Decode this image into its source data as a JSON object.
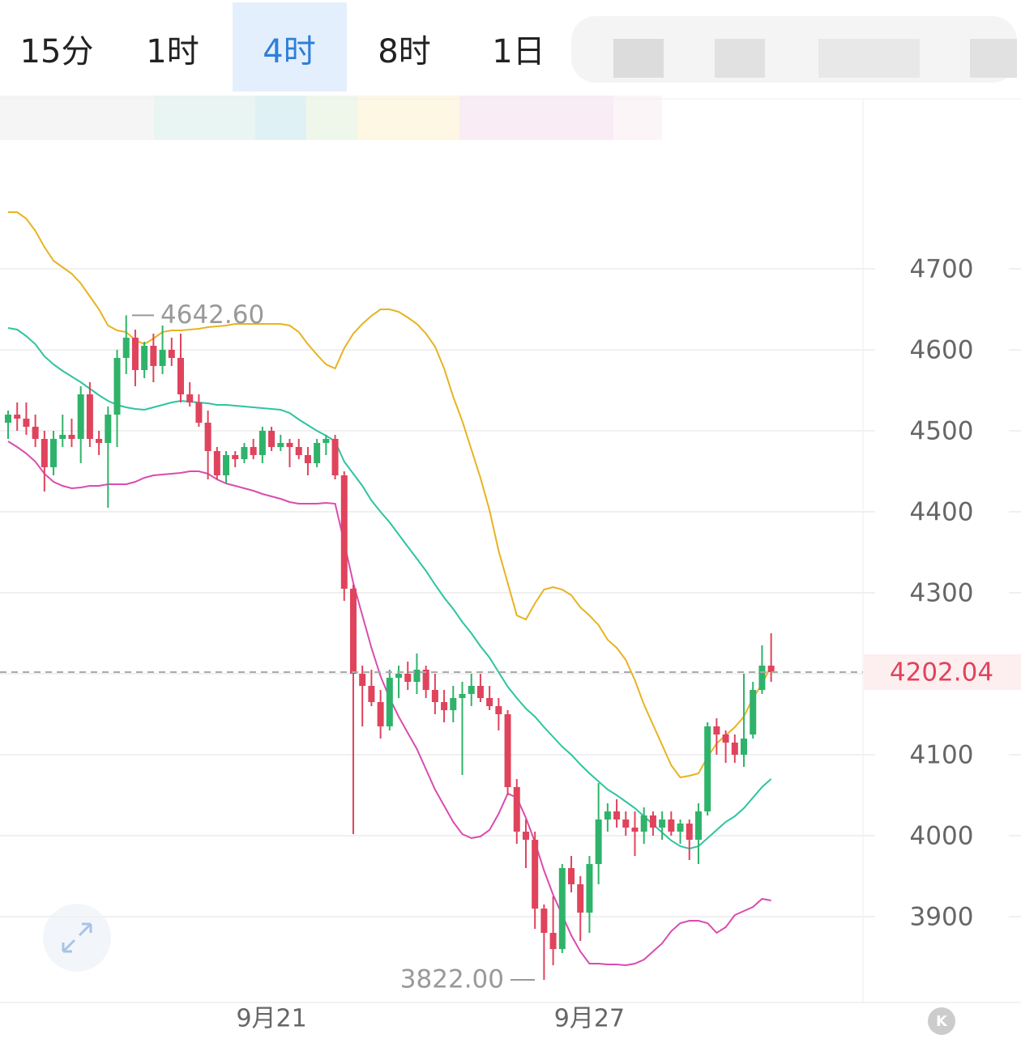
{
  "tabs": [
    "15分",
    "1时",
    "4时",
    "8时",
    "1日"
  ],
  "selected_tab": 2,
  "logo": "K",
  "chart_data": {
    "type": "candlestick",
    "ylim": [
      3794,
      4857
    ],
    "yticks": [
      3900,
      4000,
      4100,
      4200,
      4300,
      4400,
      4500,
      4600,
      4700
    ],
    "grid": true,
    "up_color": "#2fb36a",
    "down_color": "#e0435c",
    "categories": [
      null,
      null,
      null,
      null,
      null,
      null,
      null,
      null,
      null,
      null,
      null,
      null,
      null,
      null,
      null,
      null,
      null,
      null,
      null,
      null,
      null,
      null,
      null,
      null,
      null,
      null,
      null,
      null,
      null,
      "9月21",
      null,
      null,
      null,
      null,
      null,
      null,
      null,
      null,
      null,
      null,
      null,
      null,
      null,
      null,
      null,
      null,
      null,
      null,
      null,
      null,
      null,
      null,
      null,
      null,
      null,
      null,
      null,
      null,
      null,
      null,
      null,
      null,
      null,
      null,
      "9月27",
      null,
      null,
      null,
      null,
      null,
      null,
      null,
      null,
      null,
      null,
      null,
      null,
      null,
      null,
      null,
      null,
      null,
      null,
      null,
      null
    ],
    "ohlc": [
      [
        4510,
        4525,
        4490,
        4520
      ],
      [
        4520,
        4535,
        4500,
        4515
      ],
      [
        4515,
        4535,
        4495,
        4505
      ],
      [
        4505,
        4520,
        4480,
        4490
      ],
      [
        4490,
        4500,
        4425,
        4455
      ],
      [
        4455,
        4500,
        4445,
        4490
      ],
      [
        4490,
        4520,
        4480,
        4495
      ],
      [
        4495,
        4515,
        4480,
        4490
      ],
      [
        4490,
        4555,
        4460,
        4545
      ],
      [
        4545,
        4560,
        4480,
        4490
      ],
      [
        4490,
        4500,
        4470,
        4485
      ],
      [
        4485,
        4530,
        4405,
        4520
      ],
      [
        4520,
        4600,
        4480,
        4590
      ],
      [
        4590,
        4642.6,
        4570,
        4615
      ],
      [
        4615,
        4625,
        4555,
        4575
      ],
      [
        4575,
        4610,
        4565,
        4605
      ],
      [
        4605,
        4620,
        4560,
        4580
      ],
      [
        4580,
        4630,
        4570,
        4600
      ],
      [
        4600,
        4615,
        4580,
        4590
      ],
      [
        4590,
        4620,
        4535,
        4545
      ],
      [
        4545,
        4560,
        4530,
        4535
      ],
      [
        4535,
        4545,
        4505,
        4510
      ],
      [
        4510,
        4525,
        4440,
        4475
      ],
      [
        4475,
        4480,
        4440,
        4445
      ],
      [
        4445,
        4475,
        4435,
        4470
      ],
      [
        4470,
        4475,
        4455,
        4465
      ],
      [
        4465,
        4485,
        4460,
        4480
      ],
      [
        4480,
        4490,
        4465,
        4470
      ],
      [
        4470,
        4505,
        4460,
        4500
      ],
      [
        4500,
        4505,
        4475,
        4480
      ],
      [
        4480,
        4495,
        4475,
        4485
      ],
      [
        4485,
        4490,
        4455,
        4480
      ],
      [
        4480,
        4490,
        4465,
        4470
      ],
      [
        4470,
        4480,
        4445,
        4460
      ],
      [
        4460,
        4490,
        4455,
        4485
      ],
      [
        4485,
        4495,
        4470,
        4490
      ],
      [
        4490,
        4495,
        4440,
        4445
      ],
      [
        4445,
        4450,
        4290,
        4305
      ],
      [
        4305,
        4310,
        4002,
        4200
      ],
      [
        4200,
        4210,
        4135,
        4185
      ],
      [
        4185,
        4205,
        4160,
        4165
      ],
      [
        4165,
        4180,
        4120,
        4135
      ],
      [
        4135,
        4205,
        4130,
        4195
      ],
      [
        4195,
        4210,
        4170,
        4200
      ],
      [
        4200,
        4215,
        4180,
        4190
      ],
      [
        4190,
        4225,
        4175,
        4205
      ],
      [
        4205,
        4210,
        4170,
        4180
      ],
      [
        4180,
        4200,
        4150,
        4165
      ],
      [
        4165,
        4180,
        4140,
        4155
      ],
      [
        4155,
        4185,
        4140,
        4170
      ],
      [
        4170,
        4190,
        4075,
        4175
      ],
      [
        4175,
        4200,
        4160,
        4185
      ],
      [
        4185,
        4200,
        4165,
        4170
      ],
      [
        4170,
        4185,
        4155,
        4160
      ],
      [
        4160,
        4170,
        4130,
        4150
      ],
      [
        4150,
        4155,
        4050,
        4060
      ],
      [
        4060,
        4070,
        3990,
        4005
      ],
      [
        4005,
        4020,
        3960,
        3995
      ],
      [
        3995,
        4005,
        3885,
        3910
      ],
      [
        3910,
        3915,
        3822,
        3880
      ],
      [
        3880,
        3925,
        3840,
        3860
      ],
      [
        3860,
        3965,
        3855,
        3960
      ],
      [
        3960,
        3975,
        3930,
        3940
      ],
      [
        3940,
        3950,
        3870,
        3905
      ],
      [
        3905,
        3975,
        3880,
        3965
      ],
      [
        3965,
        4065,
        3940,
        4020
      ],
      [
        4020,
        4040,
        4005,
        4030
      ],
      [
        4030,
        4045,
        4010,
        4020
      ],
      [
        4020,
        4030,
        4000,
        4010
      ],
      [
        4010,
        4030,
        3975,
        4005
      ],
      [
        4005,
        4035,
        3990,
        4025
      ],
      [
        4025,
        4030,
        4000,
        4010
      ],
      [
        4010,
        4030,
        3995,
        4020
      ],
      [
        4020,
        4030,
        4000,
        4005
      ],
      [
        4005,
        4020,
        3990,
        4015
      ],
      [
        4015,
        4020,
        3970,
        3995
      ],
      [
        3995,
        4040,
        3965,
        4030
      ],
      [
        4030,
        4140,
        4025,
        4135
      ],
      [
        4135,
        4145,
        4100,
        4125
      ],
      [
        4125,
        4130,
        4090,
        4115
      ],
      [
        4115,
        4125,
        4090,
        4100
      ],
      [
        4100,
        4200,
        4085,
        4120
      ],
      [
        4125,
        4190,
        4120,
        4180
      ],
      [
        4180,
        4235,
        4175,
        4210
      ],
      [
        4210,
        4250,
        4190,
        4202.04
      ]
    ],
    "series": [
      {
        "color": "#e8b321",
        "values": [
          4770,
          4770,
          4762,
          4747,
          4727,
          4710,
          4702,
          4694,
          4682,
          4666,
          4650,
          4630,
          4624,
          4622,
          4612,
          4607,
          4614,
          4622,
          4624,
          4624,
          4625,
          4626,
          4628,
          4629,
          4630,
          4632,
          4632,
          4632,
          4632,
          4632,
          4632,
          4630,
          4622,
          4607,
          4594,
          4582,
          4577,
          4602,
          4620,
          4632,
          4642,
          4650,
          4650,
          4647,
          4640,
          4632,
          4620,
          4604,
          4577,
          4542,
          4512,
          4477,
          4442,
          4402,
          4352,
          4312,
          4272,
          4267,
          4287,
          4304,
          4307,
          4304,
          4297,
          4282,
          4272,
          4260,
          4242,
          4232,
          4217,
          4192,
          4162,
          4137,
          4112,
          4087,
          4072,
          4074,
          4077,
          4097,
          4114,
          4124,
          4134,
          4147,
          4170,
          4187,
          4210
        ]
      },
      {
        "color": "#2ec4a0",
        "values": [
          4627,
          4625,
          4617,
          4607,
          4592,
          4582,
          4574,
          4567,
          4560,
          4552,
          4544,
          4537,
          4532,
          4529,
          4527,
          4526,
          4529,
          4532,
          4535,
          4537,
          4536,
          4535,
          4534,
          4532,
          4532,
          4531,
          4530,
          4529,
          4528,
          4527,
          4526,
          4522,
          4514,
          4507,
          4500,
          4494,
          4487,
          4462,
          4447,
          4432,
          4414,
          4400,
          4387,
          4372,
          4357,
          4342,
          4327,
          4310,
          4294,
          4280,
          4264,
          4250,
          4234,
          4220,
          4202,
          4184,
          4170,
          4157,
          4147,
          4134,
          4122,
          4110,
          4100,
          4088,
          4077,
          4067,
          4057,
          4050,
          4042,
          4034,
          4024,
          4014,
          4004,
          3994,
          3987,
          3984,
          3987,
          3997,
          4007,
          4017,
          4024,
          4034,
          4047,
          4060,
          4070
        ]
      },
      {
        "color": "#d94cb0",
        "values": [
          4487,
          4480,
          4472,
          4462,
          4447,
          4437,
          4432,
          4429,
          4430,
          4432,
          4432,
          4434,
          4434,
          4434,
          4437,
          4442,
          4445,
          4446,
          4447,
          4448,
          4450,
          4450,
          4447,
          4440,
          4435,
          4432,
          4429,
          4426,
          4422,
          4419,
          4416,
          4412,
          4410,
          4410,
          4410,
          4411,
          4410,
          4362,
          4312,
          4272,
          4232,
          4197,
          4170,
          4147,
          4127,
          4107,
          4082,
          4057,
          4037,
          4017,
          4002,
          3997,
          3999,
          4007,
          4027,
          4052,
          4047,
          4022,
          3992,
          3957,
          3927,
          3902,
          3877,
          3857,
          3842,
          3842,
          3841,
          3841,
          3840,
          3842,
          3847,
          3857,
          3867,
          3882,
          3892,
          3895,
          3895,
          3892,
          3880,
          3887,
          3902,
          3907,
          3912,
          3922,
          3920
        ]
      }
    ],
    "current_price": 4202.04,
    "annotations": [
      {
        "value": 4642.6,
        "label": "4642.60"
      },
      {
        "value": 3822,
        "label": "3822.00"
      }
    ]
  }
}
